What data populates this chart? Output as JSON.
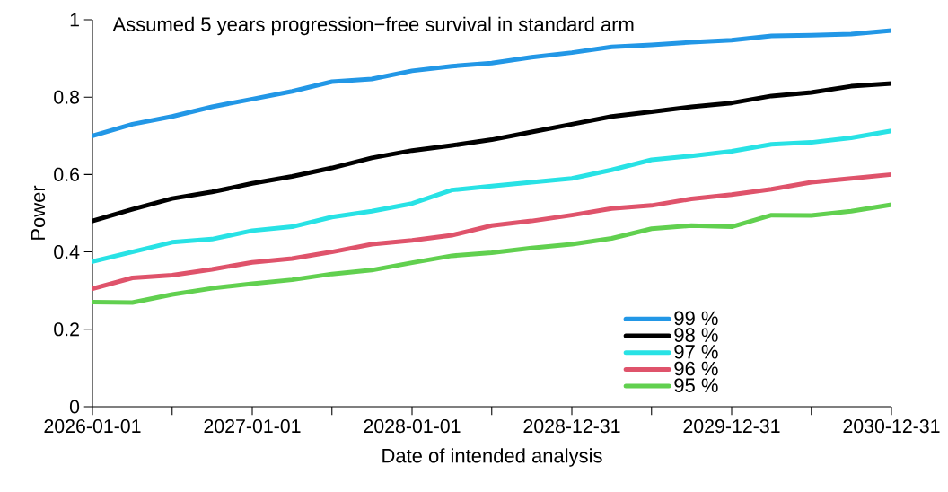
{
  "chart_data": {
    "type": "line",
    "title": "Assumed 5 years progression−free survival in standard arm",
    "xlabel": "Date of intended analysis",
    "ylabel": "Power",
    "x": [
      "2026-01-01",
      "2026-04-02",
      "2026-07-02",
      "2026-10-01",
      "2027-01-01",
      "2027-04-02",
      "2027-07-02",
      "2027-10-01",
      "2028-01-01",
      "2028-04-01",
      "2028-07-01",
      "2028-09-30",
      "2028-12-31",
      "2029-04-01",
      "2029-07-01",
      "2029-09-30",
      "2029-12-31",
      "2030-04-01",
      "2030-07-01",
      "2030-09-30",
      "2030-12-31"
    ],
    "series": [
      {
        "name": "99 %",
        "color": "#2297e6",
        "values": [
          0.7,
          0.73,
          0.75,
          0.775,
          0.795,
          0.815,
          0.84,
          0.847,
          0.868,
          0.88,
          0.888,
          0.903,
          0.915,
          0.93,
          0.935,
          0.942,
          0.947,
          0.958,
          0.96,
          0.963,
          0.972
        ]
      },
      {
        "name": "98 %",
        "color": "#000000",
        "values": [
          0.48,
          0.51,
          0.538,
          0.555,
          0.577,
          0.595,
          0.617,
          0.643,
          0.662,
          0.675,
          0.69,
          0.71,
          0.73,
          0.75,
          0.762,
          0.775,
          0.785,
          0.803,
          0.812,
          0.828,
          0.835
        ]
      },
      {
        "name": "97 %",
        "color": "#28e2e5",
        "values": [
          0.375,
          0.4,
          0.425,
          0.433,
          0.455,
          0.465,
          0.49,
          0.505,
          0.525,
          0.56,
          0.57,
          0.58,
          0.59,
          0.612,
          0.638,
          0.648,
          0.66,
          0.678,
          0.683,
          0.695,
          0.713
        ]
      },
      {
        "name": "96 %",
        "color": "#df536b",
        "values": [
          0.305,
          0.333,
          0.34,
          0.355,
          0.373,
          0.383,
          0.4,
          0.42,
          0.43,
          0.443,
          0.468,
          0.48,
          0.495,
          0.512,
          0.52,
          0.537,
          0.548,
          0.562,
          0.58,
          0.59,
          0.6
        ]
      },
      {
        "name": "95 %",
        "color": "#61d04f",
        "values": [
          0.27,
          0.269,
          0.29,
          0.306,
          0.318,
          0.328,
          0.343,
          0.353,
          0.372,
          0.39,
          0.398,
          0.41,
          0.42,
          0.435,
          0.46,
          0.468,
          0.465,
          0.495,
          0.494,
          0.505,
          0.522
        ]
      }
    ],
    "xlim": [
      "2026-01-01",
      "2030-12-31"
    ],
    "ylim": [
      0,
      1
    ],
    "xticks": [
      {
        "value": "2026-01-01",
        "label": "2026-01-01"
      },
      {
        "value": "2026-07-02",
        "label": null
      },
      {
        "value": "2027-01-01",
        "label": "2027-01-01"
      },
      {
        "value": "2027-07-02",
        "label": null
      },
      {
        "value": "2028-01-01",
        "label": "2028-01-01"
      },
      {
        "value": "2028-07-01",
        "label": null
      },
      {
        "value": "2028-12-31",
        "label": "2028-12-31"
      },
      {
        "value": "2029-07-01",
        "label": null
      },
      {
        "value": "2029-12-31",
        "label": "2029-12-31"
      },
      {
        "value": "2030-07-01",
        "label": null
      },
      {
        "value": "2030-12-31",
        "label": "2030-12-31"
      }
    ],
    "yticks": [
      0,
      0.2,
      0.4,
      0.6,
      0.8,
      1
    ],
    "legend": "bottom right"
  }
}
